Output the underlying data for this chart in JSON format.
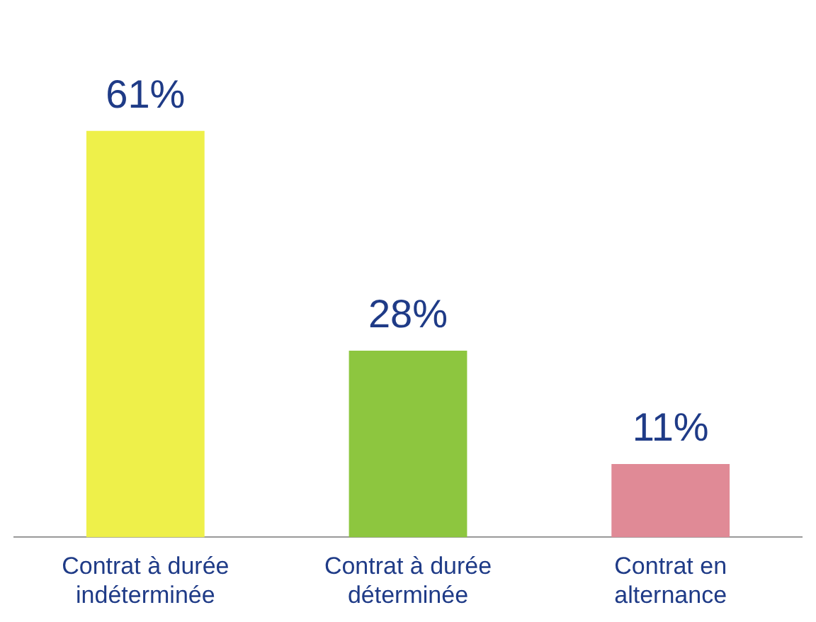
{
  "chart_data": {
    "type": "bar",
    "categories": [
      "Contrat à durée indéterminée",
      "Contrat à durée déterminée",
      "Contrat en alternance"
    ],
    "values": [
      61,
      28,
      11
    ],
    "colors": [
      "#eef04a",
      "#8dc63f",
      "#e08a96"
    ],
    "value_labels": [
      "61%",
      "28%",
      "11%"
    ],
    "grid": false,
    "legend": false
  }
}
